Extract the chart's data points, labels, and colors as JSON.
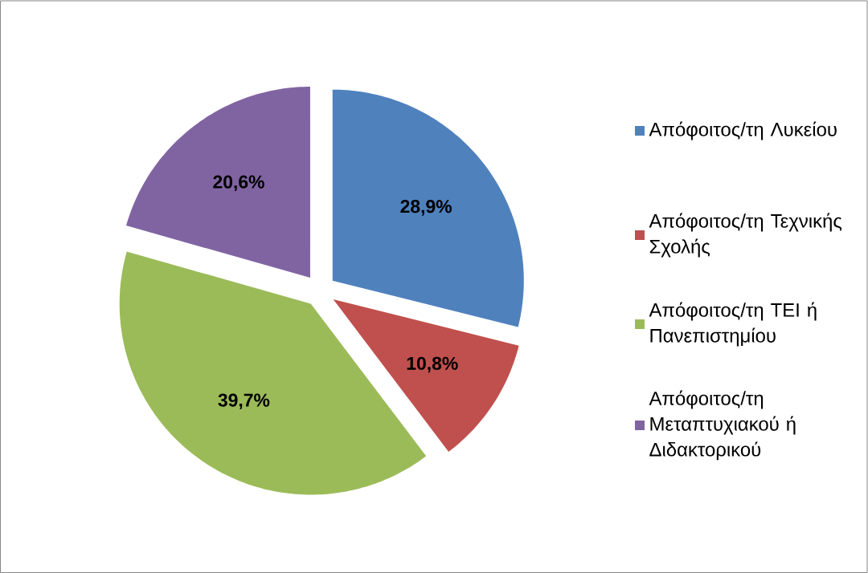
{
  "chart_data": {
    "type": "pie",
    "categories": [
      "Απόφοιτος/τη Λυκείου",
      "Απόφοιτος/τη Τεχνικής Σχολής",
      "Απόφοιτος/τη ΤΕΙ ή Πανεπιστημίου",
      "Απόφοιτος/τη Μεταπτυχιακού ή Διδακτορικού"
    ],
    "values": [
      28.9,
      10.8,
      39.7,
      20.6
    ],
    "colors": [
      "#4f81bd",
      "#c0504d",
      "#9bbb59",
      "#8064a2"
    ],
    "value_labels": [
      "28,9%",
      "10,8%",
      "39,7%",
      "20,6%"
    ],
    "legend": "right"
  }
}
